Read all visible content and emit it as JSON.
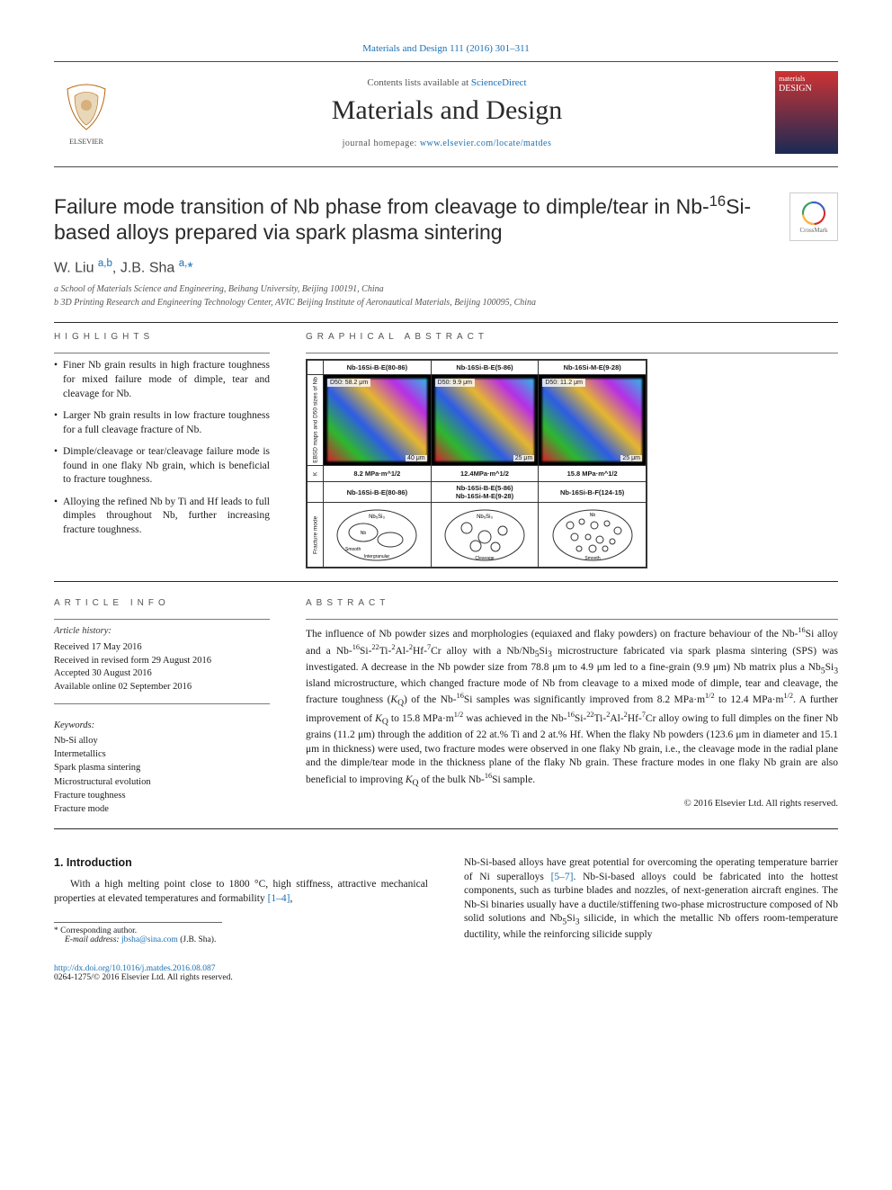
{
  "top_citation": "Materials and Design 111 (2016) 301–311",
  "header": {
    "contents_line_prefix": "Contents lists available at ",
    "contents_link": "ScienceDirect",
    "journal_name": "Materials and Design",
    "home_prefix": "journal homepage: ",
    "home_url": "www.elsevier.com/locate/matdes",
    "elsevier_alt": "ELSEVIER",
    "cover_m": "materials",
    "cover_d": "DESIGN"
  },
  "crossmark_label": "CrossMark",
  "title_html": "Failure mode transition of Nb phase from cleavage to dimple/tear in Nb-<sup>16</sup>Si-based alloys prepared via spark plasma sintering",
  "authors_html": "W. Liu <sup><a href=\"#\">a,b</a></sup>, J.B. Sha <sup><a href=\"#\">a,</a></sup><a href=\"#\">*</a>",
  "affiliations": [
    "a  School of Materials Science and Engineering, Beihang University, Beijing 100191, China",
    "b  3D Printing Research and Engineering Technology Center, AVIC Beijing Institute of Aeronautical Materials, Beijing 100095, China"
  ],
  "highlights_head": "HIGHLIGHTS",
  "graphical_head": "GRAPHICAL ABSTRACT",
  "highlights": [
    "Finer Nb grain results in high fracture toughness for mixed failure mode of dimple, tear and cleavage for Nb.",
    "Larger Nb grain results in low fracture toughness for a full cleavage fracture of Nb.",
    "Dimple/cleavage or tear/cleavage failure mode is found in one flaky Nb grain, which is beneficial to fracture toughness.",
    "Alloying the refined Nb by Ti and Hf leads to full dimples throughout Nb, further increasing fracture toughness."
  ],
  "ga": {
    "cols_top": [
      "Nb-16Si-B-E(80-86)",
      "Nb-16Si-B-E(5-86)",
      "Nb-16Si-M-E(9-28)"
    ],
    "row_ebsd_label": "EBSD maps and D50 sizes of Nb",
    "d50": [
      "D50: 58.2 μm",
      "D50: 9.9 μm",
      "D50: 11.2 μm"
    ],
    "scale": [
      "40 μm",
      "25 μm",
      "25 μm"
    ],
    "k_label": "K",
    "k_values": [
      "8.2 MPa·m^1/2",
      "12.4MPa·m^1/2",
      "15.8 MPa·m^1/2"
    ],
    "cols_bottom": [
      "Nb-16Si-B-E(80-86)",
      "Nb-16Si-B-E(5-86)\nNb-16Si-M-E(9-28)",
      "Nb-16Si-B-F(124-15)"
    ],
    "frac_label": "Fracture mode"
  },
  "article_info_head": "ARTICLE INFO",
  "abstract_head": "ABSTRACT",
  "history_label": "Article history:",
  "history": [
    "Received 17 May 2016",
    "Received in revised form 29 August 2016",
    "Accepted 30 August 2016",
    "Available online 02 September 2016"
  ],
  "kw_label": "Keywords:",
  "keywords": [
    "Nb-Si alloy",
    "Intermetallics",
    "Spark plasma sintering",
    "Microstructural evolution",
    "Fracture toughness",
    "Fracture mode"
  ],
  "abstract_html": "The influence of Nb powder sizes and morphologies (equiaxed and flaky powders) on fracture behaviour of the Nb-<sup>16</sup>Si alloy and a Nb-<sup>16</sup>Si-<sup>22</sup>Ti-<sup>2</sup>Al-<sup>2</sup>Hf-<sup>7</sup>Cr alloy with a Nb/Nb<sub>5</sub>Si<sub>3</sub> microstructure fabricated via spark plasma sintering (SPS) was investigated. A decrease in the Nb powder size from 78.8 μm to 4.9 μm led to a fine-grain (9.9 μm) Nb matrix plus a Nb<sub>5</sub>Si<sub>3</sub> island microstructure, which changed fracture mode of Nb from cleavage to a mixed mode of dimple, tear and cleavage, the fracture toughness (<i>K</i><sub>Q</sub>) of the Nb-<sup>16</sup>Si samples was significantly improved from 8.2 MPa·m<sup>1/2</sup> to 12.4 MPa·m<sup>1/2</sup>. A further improvement of <i>K</i><sub>Q</sub> to 15.8 MPa·m<sup>1/2</sup> was achieved in the Nb-<sup>16</sup>Si-<sup>22</sup>Ti-<sup>2</sup>Al-<sup>2</sup>Hf-<sup>7</sup>Cr alloy owing to full dimples on the finer Nb grains (11.2 μm) through the addition of 22 at.% Ti and 2 at.% Hf. When the flaky Nb powders (123.6 μm in diameter and 15.1 μm in thickness) were used, two fracture modes were observed in one flaky Nb grain, i.e., the cleavage mode in the radial plane and the dimple/tear mode in the thickness plane of the flaky Nb grain. These fracture modes in one flaky Nb grain are also beneficial to improving <i>K</i><sub>Q</sub> of the bulk Nb-<sup>16</sup>Si sample.",
  "copyright": "© 2016 Elsevier Ltd. All rights reserved.",
  "intro_head": "1. Introduction",
  "intro_left_html": "With a high melting point close to 1800 °C, high stiffness, attractive mechanical properties at elevated temperatures and formability <a href=\"#\">[1–4]</a>,",
  "intro_right_html": "Nb-Si-based alloys have great potential for overcoming the operating temperature barrier of Ni superalloys <a href=\"#\">[5–7]</a>. Nb-Si-based alloys could be fabricated into the hottest components, such as turbine blades and nozzles, of next-generation aircraft engines. The Nb-Si binaries usually have a ductile/stiffening two-phase microstructure composed of Nb solid solutions and Nb<sub>5</sub>Si<sub>3</sub> silicide, in which the metallic Nb offers room-temperature ductility, while the reinforcing silicide supply",
  "footnote": {
    "star": "* Corresponding author.",
    "email_label": "E-mail address:",
    "email": "jbsha@sina.com",
    "email_paren": "(J.B. Sha)."
  },
  "footer": {
    "doi": "http://dx.doi.org/10.1016/j.matdes.2016.08.087",
    "line2": "0264-1275/© 2016 Elsevier Ltd. All rights reserved."
  },
  "colors": {
    "link": "#1a6fb3",
    "text": "#1a1a1a",
    "muted": "#555555",
    "rule": "#2a2a2a"
  }
}
